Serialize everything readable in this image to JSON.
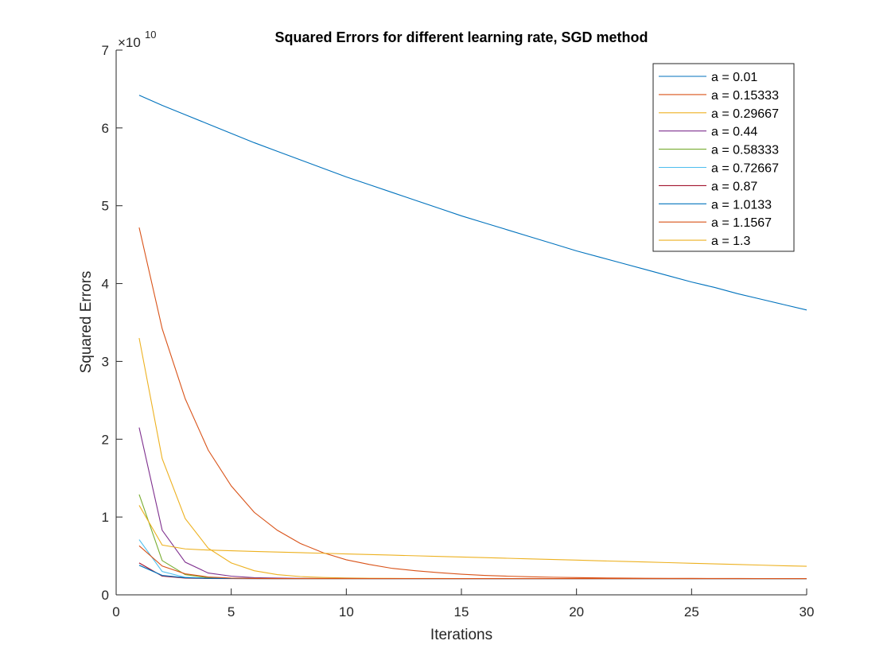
{
  "chart_data": {
    "type": "line",
    "title": "Squared Errors for different learning rate, SGD method",
    "xlabel": "Iterations",
    "ylabel": "Squared Errors",
    "xlim": [
      0,
      30
    ],
    "ylim": [
      0,
      70000000000.0
    ],
    "y_multiplier": {
      "base": "×10",
      "exponent": "10"
    },
    "xticks": [
      0,
      5,
      10,
      15,
      20,
      25,
      30
    ],
    "yticks": [
      0,
      1,
      2,
      3,
      4,
      5,
      6,
      7
    ],
    "grid": false,
    "legend_position": "top-right",
    "x": [
      1,
      2,
      3,
      4,
      5,
      6,
      7,
      8,
      9,
      10,
      11,
      12,
      13,
      14,
      15,
      16,
      17,
      18,
      19,
      20,
      21,
      22,
      23,
      24,
      25,
      26,
      27,
      28,
      29,
      30
    ],
    "series": [
      {
        "name": "a = 0.01",
        "color": "#0072BD",
        "values": [
          64200000000.0,
          62900000000.0,
          61700000000.0,
          60500000000.0,
          59300000000.0,
          58100000000.0,
          57000000000.0,
          55900000000.0,
          54800000000.0,
          53700000000.0,
          52700000000.0,
          51700000000.0,
          50700000000.0,
          49700000000.0,
          48700000000.0,
          47800000000.0,
          46900000000.0,
          46000000000.0,
          45100000000.0,
          44200000000.0,
          43400000000.0,
          42600000000.0,
          41800000000.0,
          41000000000.0,
          40200000000.0,
          39500000000.0,
          38700000000.0,
          38000000000.0,
          37300000000.0,
          36600000000.0
        ]
      },
      {
        "name": "a = 0.15333",
        "color": "#D95319",
        "values": [
          47200000000.0,
          34200000000.0,
          25200000000.0,
          18600000000.0,
          14000000000.0,
          10600000000.0,
          8300000000.0,
          6600000000.0,
          5400000000.0,
          4500000000.0,
          3900000000.0,
          3400000000.0,
          3100000000.0,
          2850000000.0,
          2650000000.0,
          2500000000.0,
          2400000000.0,
          2320000000.0,
          2260000000.0,
          2220000000.0,
          2180000000.0,
          2150000000.0,
          2130000000.0,
          2120000000.0,
          2110000000.0,
          2100000000.0,
          2100000000.0,
          2090000000.0,
          2090000000.0,
          2090000000.0
        ]
      },
      {
        "name": "a = 0.29667",
        "color": "#EDB120",
        "values": [
          33000000000.0,
          17500000000.0,
          9800000000.0,
          6000000000.0,
          4100000000.0,
          3100000000.0,
          2600000000.0,
          2350000000.0,
          2230000000.0,
          2170000000.0,
          2130000000.0,
          2110000000.0,
          2100000000.0,
          2100000000.0,
          2090000000.0,
          2090000000.0,
          2090000000.0,
          2090000000.0,
          2090000000.0,
          2090000000.0,
          2090000000.0,
          2090000000.0,
          2090000000.0,
          2090000000.0,
          2090000000.0,
          2090000000.0,
          2090000000.0,
          2090000000.0,
          2090000000.0,
          2090000000.0
        ]
      },
      {
        "name": "a = 0.44",
        "color": "#7E2F8E",
        "values": [
          21500000000.0,
          8300000000.0,
          4200000000.0,
          2800000000.0,
          2400000000.0,
          2200000000.0,
          2150000000.0,
          2120000000.0,
          2100000000.0,
          2100000000.0,
          2090000000.0,
          2090000000.0,
          2090000000.0,
          2090000000.0,
          2090000000.0,
          2090000000.0,
          2090000000.0,
          2090000000.0,
          2090000000.0,
          2090000000.0,
          2090000000.0,
          2090000000.0,
          2090000000.0,
          2090000000.0,
          2090000000.0,
          2090000000.0,
          2090000000.0,
          2090000000.0,
          2090000000.0,
          2090000000.0
        ]
      },
      {
        "name": "a = 0.58333",
        "color": "#77AC30",
        "values": [
          12900000000.0,
          4400000000.0,
          2600000000.0,
          2200000000.0,
          2120000000.0,
          2100000000.0,
          2090000000.0,
          2090000000.0,
          2090000000.0,
          2090000000.0,
          2090000000.0,
          2090000000.0,
          2090000000.0,
          2090000000.0,
          2090000000.0,
          2090000000.0,
          2090000000.0,
          2090000000.0,
          2090000000.0,
          2090000000.0,
          2090000000.0,
          2090000000.0,
          2090000000.0,
          2090000000.0,
          2090000000.0,
          2090000000.0,
          2090000000.0,
          2090000000.0,
          2090000000.0,
          2090000000.0
        ]
      },
      {
        "name": "a = 0.72667",
        "color": "#4DBEEE",
        "values": [
          7100000000.0,
          3000000000.0,
          2250000000.0,
          2120000000.0,
          2100000000.0,
          2090000000.0,
          2090000000.0,
          2090000000.0,
          2090000000.0,
          2090000000.0,
          2090000000.0,
          2090000000.0,
          2090000000.0,
          2090000000.0,
          2090000000.0,
          2090000000.0,
          2090000000.0,
          2090000000.0,
          2090000000.0,
          2090000000.0,
          2090000000.0,
          2090000000.0,
          2090000000.0,
          2090000000.0,
          2090000000.0,
          2090000000.0,
          2090000000.0,
          2090000000.0,
          2090000000.0,
          2090000000.0
        ]
      },
      {
        "name": "a = 0.87",
        "color": "#A2142F",
        "values": [
          4100000000.0,
          2400000000.0,
          2150000000.0,
          2100000000.0,
          2090000000.0,
          2090000000.0,
          2090000000.0,
          2090000000.0,
          2090000000.0,
          2090000000.0,
          2090000000.0,
          2090000000.0,
          2090000000.0,
          2090000000.0,
          2090000000.0,
          2090000000.0,
          2090000000.0,
          2090000000.0,
          2090000000.0,
          2090000000.0,
          2090000000.0,
          2090000000.0,
          2090000000.0,
          2090000000.0,
          2090000000.0,
          2090000000.0,
          2090000000.0,
          2090000000.0,
          2090000000.0,
          2090000000.0
        ]
      },
      {
        "name": "a = 1.0133",
        "color": "#0072BD",
        "values": [
          3800000000.0,
          2500000000.0,
          2200000000.0,
          2120000000.0,
          2100000000.0,
          2090000000.0,
          2090000000.0,
          2090000000.0,
          2090000000.0,
          2090000000.0,
          2090000000.0,
          2090000000.0,
          2090000000.0,
          2090000000.0,
          2090000000.0,
          2090000000.0,
          2090000000.0,
          2090000000.0,
          2090000000.0,
          2090000000.0,
          2090000000.0,
          2090000000.0,
          2090000000.0,
          2090000000.0,
          2090000000.0,
          2090000000.0,
          2090000000.0,
          2090000000.0,
          2090000000.0,
          2090000000.0
        ]
      },
      {
        "name": "a = 1.1567",
        "color": "#D95319",
        "values": [
          6300000000.0,
          3700000000.0,
          2700000000.0,
          2300000000.0,
          2150000000.0,
          2100000000.0,
          2090000000.0,
          2090000000.0,
          2090000000.0,
          2090000000.0,
          2090000000.0,
          2090000000.0,
          2090000000.0,
          2090000000.0,
          2090000000.0,
          2090000000.0,
          2090000000.0,
          2090000000.0,
          2090000000.0,
          2090000000.0,
          2090000000.0,
          2090000000.0,
          2090000000.0,
          2090000000.0,
          2090000000.0,
          2090000000.0,
          2090000000.0,
          2090000000.0,
          2090000000.0,
          2090000000.0
        ]
      },
      {
        "name": "a = 1.3",
        "color": "#EDB120",
        "values": [
          11500000000.0,
          6400000000.0,
          5900000000.0,
          5750000000.0,
          5660000000.0,
          5580000000.0,
          5500000000.0,
          5420000000.0,
          5340000000.0,
          5260000000.0,
          5180000000.0,
          5100000000.0,
          5020000000.0,
          4940000000.0,
          4860000000.0,
          4780000000.0,
          4700000000.0,
          4620000000.0,
          4540000000.0,
          4460000000.0,
          4380000000.0,
          4300000000.0,
          4220000000.0,
          4140000000.0,
          4060000000.0,
          3980000000.0,
          3900000000.0,
          3820000000.0,
          3740000000.0,
          3670000000.0
        ]
      }
    ]
  }
}
